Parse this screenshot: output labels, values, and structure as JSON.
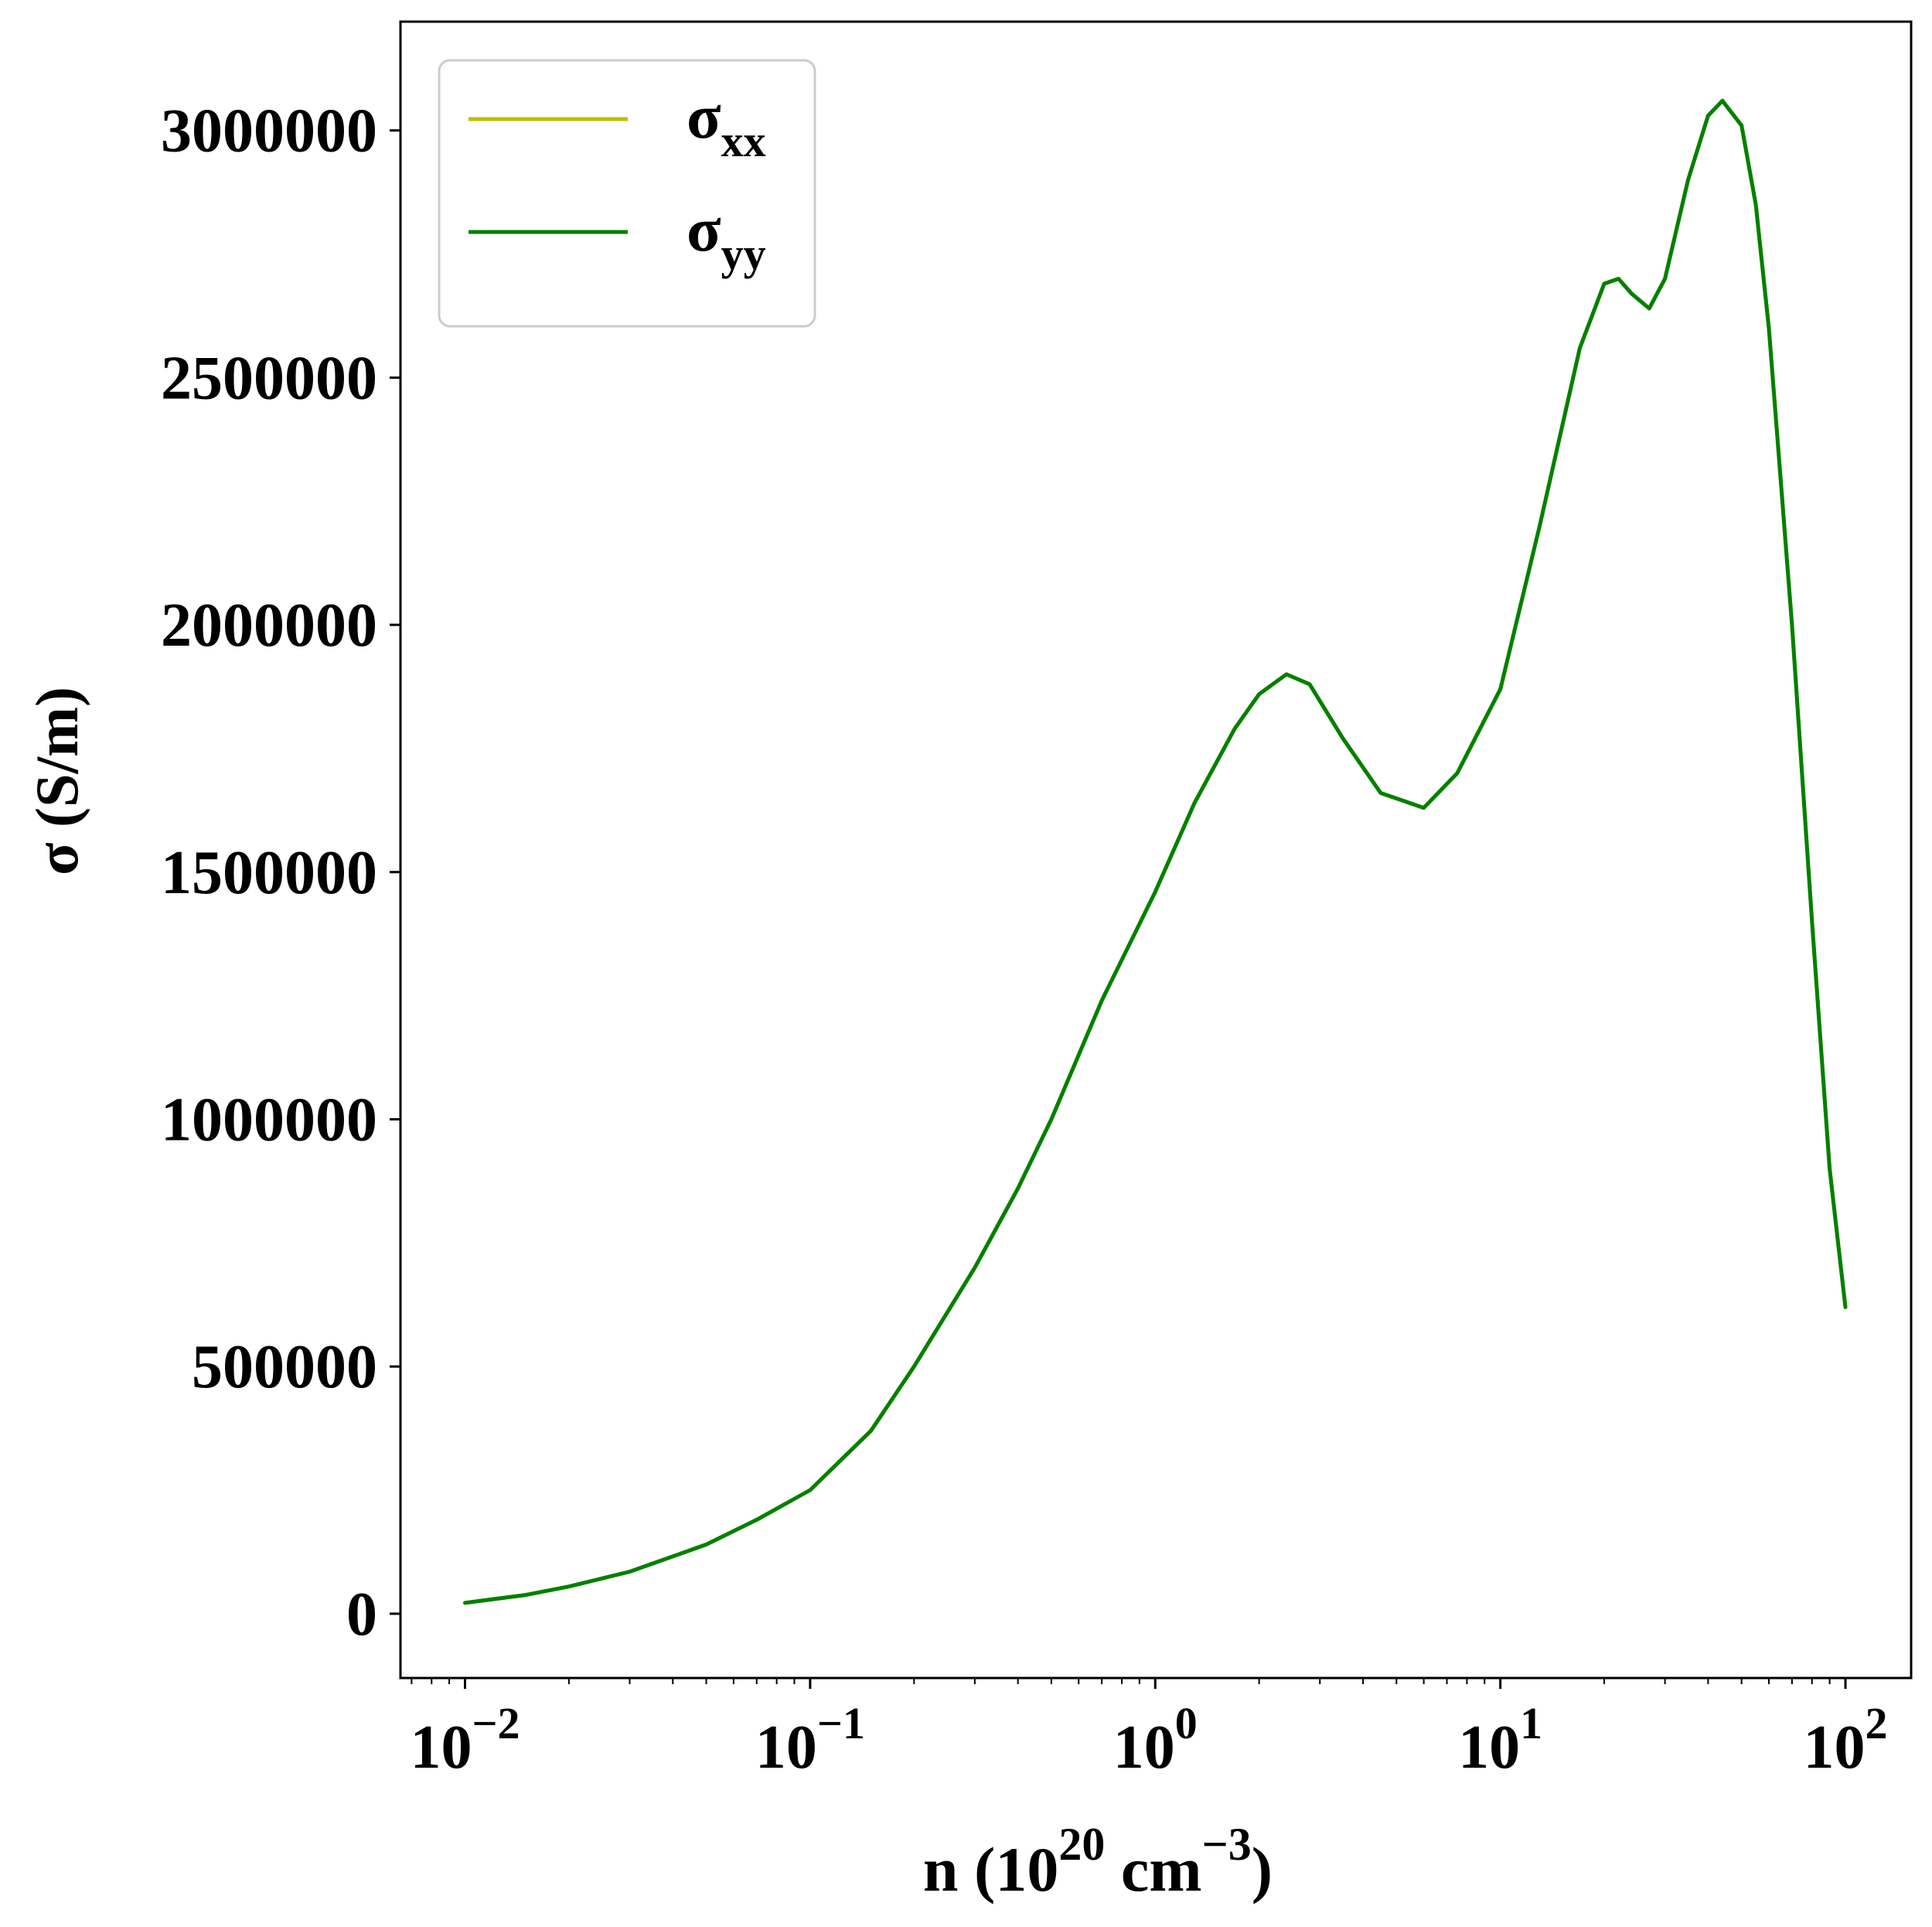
{
  "chart_data": {
    "type": "line",
    "x_scale": "log",
    "xlim": [
      0.0065,
      155
    ],
    "ylim": [
      -130000,
      3220000
    ],
    "x_ticks": [
      {
        "value": 0.01,
        "base": "10",
        "exp": "−2"
      },
      {
        "value": 0.1,
        "base": "10",
        "exp": "−1"
      },
      {
        "value": 1,
        "base": "10",
        "exp": "0"
      },
      {
        "value": 10,
        "base": "10",
        "exp": "1"
      },
      {
        "value": 100,
        "base": "10",
        "exp": "2"
      }
    ],
    "y_ticks": [
      {
        "value": 0,
        "label": "0"
      },
      {
        "value": 500000,
        "label": "500000"
      },
      {
        "value": 1000000,
        "label": "1000000"
      },
      {
        "value": 1500000,
        "label": "1500000"
      },
      {
        "value": 2000000,
        "label": "2000000"
      },
      {
        "value": 2500000,
        "label": "2500000"
      },
      {
        "value": 3000000,
        "label": "3000000"
      }
    ],
    "xlabel": {
      "prefix": "n (10",
      "sup1": "20",
      "mid": " cm",
      "sup2": "−3",
      "suffix": ")"
    },
    "ylabel": "σ (S/m)",
    "grid": false,
    "legend_position": "top-left",
    "series": [
      {
        "name": "σ",
        "sub": "xx",
        "color": "#bfbf00",
        "x": [
          0.01,
          0.015,
          0.02,
          0.03,
          0.05,
          0.07,
          0.1,
          0.15,
          0.2,
          0.3,
          0.4,
          0.5,
          0.7,
          1.0,
          1.3,
          1.7,
          2.0,
          2.4,
          2.8,
          3.5,
          4.5,
          6.0,
          7.5,
          10.0,
          13.0,
          17.0,
          20.0,
          22.0,
          24.0,
          27.0,
          30.0,
          35.0,
          40.0,
          44.0,
          50.0,
          55.0,
          60.0,
          70.0,
          80.0,
          90.0,
          100.0
        ],
        "y": [
          22000,
          38000,
          55000,
          85000,
          140000,
          190000,
          250000,
          370000,
          500000,
          700000,
          860000,
          1000000,
          1240000,
          1460000,
          1640000,
          1790000,
          1860000,
          1900000,
          1880000,
          1770000,
          1660000,
          1630000,
          1700000,
          1870000,
          2200000,
          2560000,
          2690000,
          2700000,
          2670000,
          2640000,
          2700000,
          2900000,
          3030000,
          3060000,
          3010000,
          2850000,
          2600000,
          2000000,
          1400000,
          900000,
          620000
        ]
      },
      {
        "name": "σ",
        "sub": "yy",
        "color": "#008000",
        "x": [
          0.01,
          0.015,
          0.02,
          0.03,
          0.05,
          0.07,
          0.1,
          0.15,
          0.2,
          0.3,
          0.4,
          0.5,
          0.7,
          1.0,
          1.3,
          1.7,
          2.0,
          2.4,
          2.8,
          3.5,
          4.5,
          6.0,
          7.5,
          10.0,
          13.0,
          17.0,
          20.0,
          22.0,
          24.0,
          27.0,
          30.0,
          35.0,
          40.0,
          44.0,
          50.0,
          55.0,
          60.0,
          70.0,
          80.0,
          90.0,
          100.0
        ],
        "y": [
          22000,
          38000,
          55000,
          85000,
          140000,
          190000,
          250000,
          370000,
          500000,
          700000,
          860000,
          1000000,
          1240000,
          1460000,
          1640000,
          1790000,
          1860000,
          1900000,
          1880000,
          1770000,
          1660000,
          1630000,
          1700000,
          1870000,
          2200000,
          2560000,
          2690000,
          2700000,
          2670000,
          2640000,
          2700000,
          2900000,
          3030000,
          3060000,
          3010000,
          2850000,
          2600000,
          2000000,
          1400000,
          900000,
          620000
        ]
      }
    ]
  }
}
